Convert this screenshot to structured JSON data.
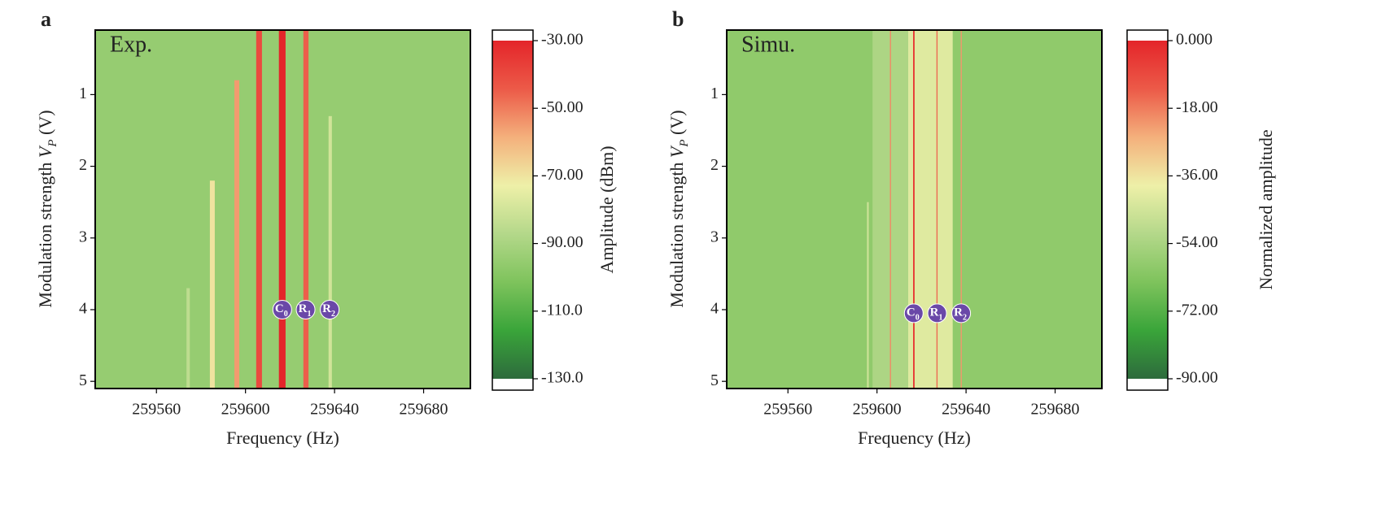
{
  "chart_data": [
    {
      "type": "heatmap",
      "panel": "a",
      "annotation": "Exp.",
      "xlabel": "Frequency (Hz)",
      "ylabel": {
        "text": "Modulation strength ",
        "var": "V",
        "sub": "P",
        "unit": " (V)"
      },
      "xlim": [
        259532.5,
        259701
      ],
      "xticks": [
        259560,
        259600,
        259640,
        259680
      ],
      "ylim": [
        5.1,
        0.1
      ],
      "yticks": [
        1,
        2,
        3,
        4,
        5
      ],
      "background": -95,
      "regions": [
        {
          "x0": 259573.5,
          "x1": 259575,
          "y0": 3.7,
          "value": -85
        },
        {
          "x0": 259584,
          "x1": 259586.2,
          "y0": 2.2,
          "value": -70
        },
        {
          "x0": 259595,
          "x1": 259597.2,
          "y0": 0.8,
          "value": -55
        },
        {
          "x0": 259604.8,
          "x1": 259607.4,
          "y0": 0.1,
          "value": -40
        },
        {
          "x0": 259615,
          "x1": 259618,
          "y0": 0.1,
          "value": -30
        },
        {
          "x0": 259626,
          "x1": 259628.3,
          "y0": 0.1,
          "value": -45
        },
        {
          "x0": 259637.3,
          "x1": 259638.8,
          "y0": 1.3,
          "value": -80
        }
      ],
      "markers": [
        {
          "label": "C",
          "sub": "0",
          "x": 259616.5,
          "y": 4
        },
        {
          "label": "R",
          "sub": "1",
          "x": 259627,
          "y": 4
        },
        {
          "label": "R",
          "sub": "2",
          "x": 259637.8,
          "y": 4
        }
      ],
      "colorbar_label": "Amplitude (dBm)",
      "clim": [
        -130,
        -30
      ],
      "cticks": [
        {
          "value": -30,
          "label": "-30.00"
        },
        {
          "value": -50,
          "label": "-50.00"
        },
        {
          "value": -70,
          "label": "-70.00"
        },
        {
          "value": -90,
          "label": "-90.00"
        },
        {
          "value": -110,
          "label": "-110.0"
        },
        {
          "value": -130,
          "label": "-130.0"
        }
      ],
      "colormap": [
        "#2d6b3c",
        "#3aa53a",
        "#7ec35c",
        "#b4d88a",
        "#eef0a8",
        "#f4b07c",
        "#ec5a48",
        "#e4252a"
      ]
    },
    {
      "type": "heatmap",
      "panel": "b",
      "annotation": "Simu.",
      "xlabel": "Frequency (Hz)",
      "ylabel": {
        "text": "Modulation strength ",
        "var": "V",
        "sub": "P",
        "unit": " (V)"
      },
      "xlim": [
        259532.5,
        259701
      ],
      "xticks": [
        259560,
        259600,
        259640,
        259680
      ],
      "ylim": [
        5.1,
        0.1
      ],
      "yticks": [
        1,
        2,
        3,
        4,
        5
      ],
      "background": -60,
      "regions": [
        {
          "x0": 259598,
          "x1": 259614,
          "y0": 0.1,
          "value": -53
        },
        {
          "x0": 259595.5,
          "x1": 259596.3,
          "y0": 2.5,
          "value": -46
        },
        {
          "x0": 259605.8,
          "x1": 259606.3,
          "y0": 0.1,
          "value": -20
        },
        {
          "x0": 259614,
          "x1": 259634,
          "y0": 0.1,
          "value": -42
        },
        {
          "x0": 259616.2,
          "x1": 259616.9,
          "y0": 0.1,
          "value": -5
        },
        {
          "x0": 259626.7,
          "x1": 259627.2,
          "y0": 0.1,
          "value": -15
        },
        {
          "x0": 259637.6,
          "x1": 259638.1,
          "y0": 0.1,
          "value": -22
        }
      ],
      "markers": [
        {
          "label": "C",
          "sub": "0",
          "x": 259616.5,
          "y": 4.05
        },
        {
          "label": "R",
          "sub": "1",
          "x": 259627,
          "y": 4.05
        },
        {
          "label": "R",
          "sub": "2",
          "x": 259637.8,
          "y": 4.05
        }
      ],
      "colorbar_label": "Normalized amplitude",
      "clim": [
        -90,
        0
      ],
      "cticks": [
        {
          "value": 0,
          "label": "0.000"
        },
        {
          "value": -18,
          "label": "-18.00"
        },
        {
          "value": -36,
          "label": "-36.00"
        },
        {
          "value": -54,
          "label": "-54.00"
        },
        {
          "value": -72,
          "label": "-72.00"
        },
        {
          "value": -90,
          "label": "-90.00"
        }
      ],
      "colormap": [
        "#2d6b3c",
        "#3aa53a",
        "#7ec35c",
        "#b4d88a",
        "#eef0a8",
        "#f4b07c",
        "#ec5a48",
        "#e4252a"
      ]
    }
  ]
}
